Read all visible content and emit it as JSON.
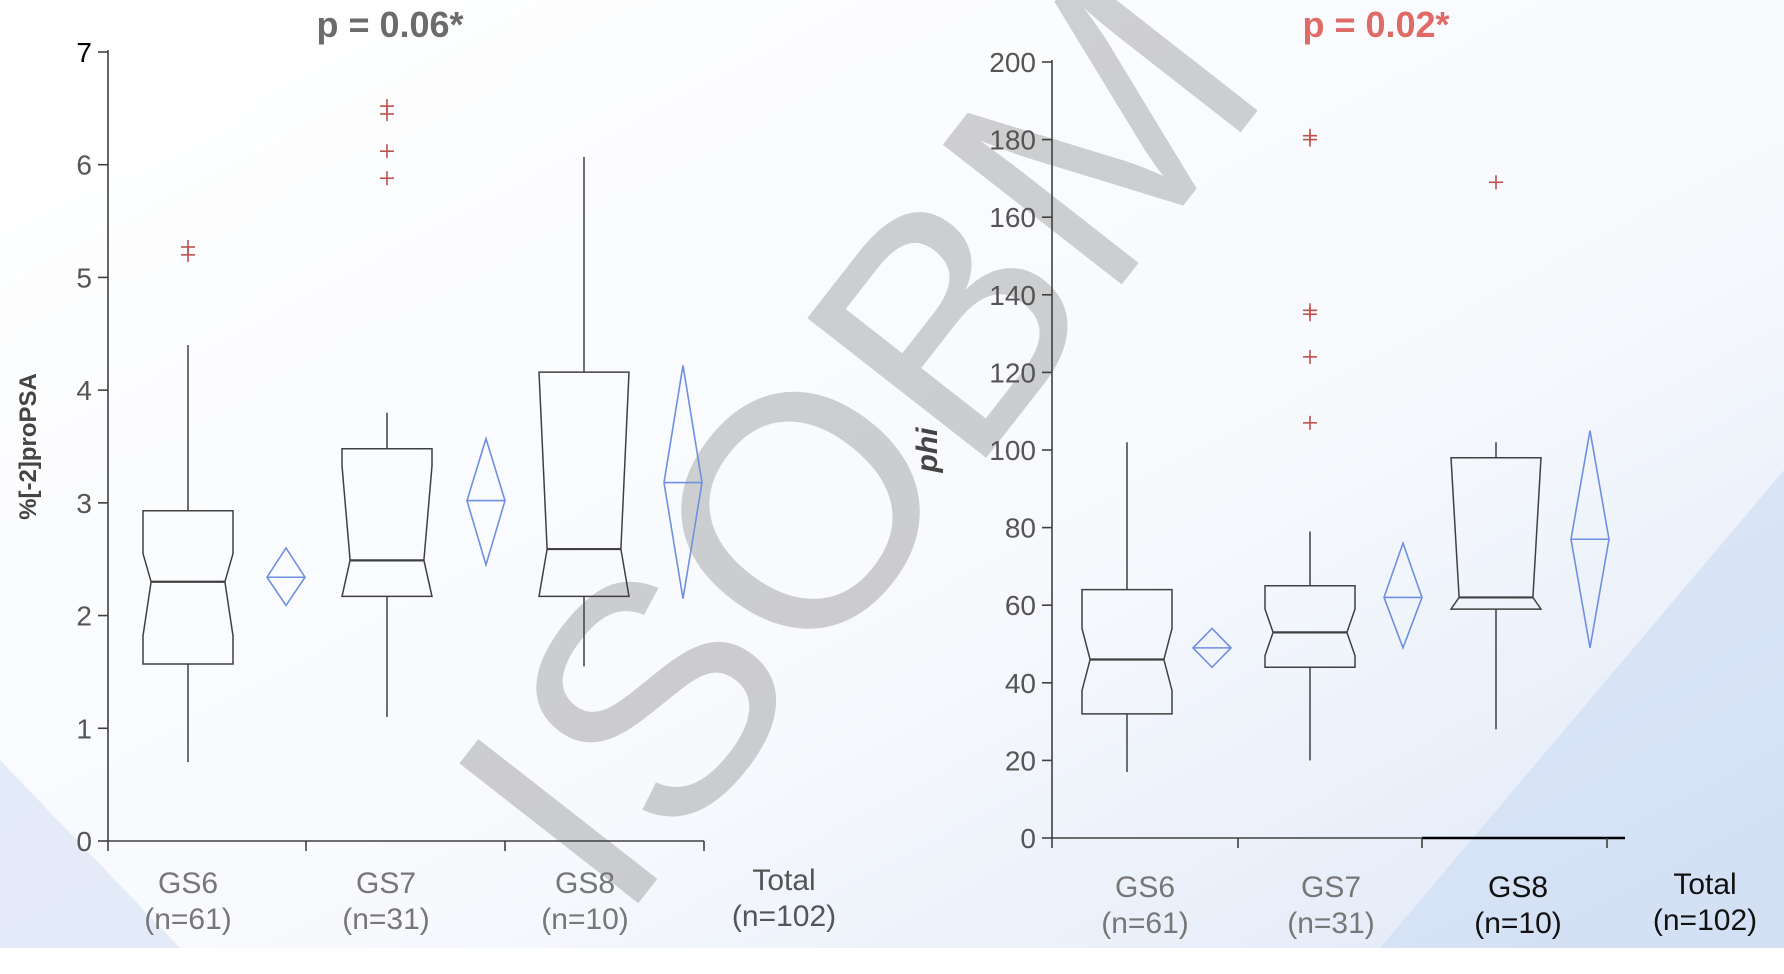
{
  "watermark": "ISOBM",
  "colors": {
    "box": "#404040",
    "diamond": "#6f8fe0",
    "outlier": "#c0504d",
    "title_left": "#6b6b6b",
    "title_right": "#e06a66",
    "axis": "#404040",
    "label": "#555555"
  },
  "chart_data": [
    {
      "type": "boxplot",
      "title": "p = 0.06*",
      "ylabel": "%[-2]proPSA",
      "ylabel_style": "bold",
      "ylim": [
        0,
        7
      ],
      "yticks": [
        0,
        1,
        2,
        3,
        4,
        5,
        6,
        7
      ],
      "categories": [
        "GS6\n(n=61)",
        "GS7\n(n=31)",
        "GS8\n(n=10)",
        "Total\n(n=102)"
      ],
      "boxes": [
        {
          "group": "GS6",
          "min": 0.7,
          "q1": 1.57,
          "median": 2.3,
          "q3": 2.93,
          "max": 4.4,
          "notch_low": 1.82,
          "notch_high": 2.55,
          "outliers": [
            5.2,
            5.27
          ]
        },
        {
          "group": "GS7",
          "min": 1.1,
          "q1": 2.17,
          "median": 2.49,
          "q3": 3.48,
          "max": 3.8,
          "notch_low": 2.17,
          "notch_high": 3.33,
          "outliers": [
            5.88,
            6.12,
            6.45,
            6.52
          ]
        },
        {
          "group": "GS8",
          "min": 1.55,
          "q1": 2.17,
          "median": 2.59,
          "q3": 4.16,
          "max": 6.07,
          "notch_low": 2.17,
          "notch_high": 4.16,
          "outliers": []
        }
      ],
      "diamonds": [
        {
          "group": "GS6",
          "mean": 2.34,
          "low": 2.09,
          "high": 2.6
        },
        {
          "group": "GS7",
          "mean": 3.02,
          "low": 2.45,
          "high": 3.57
        },
        {
          "group": "GS8",
          "mean": 3.18,
          "low": 2.15,
          "high": 4.22
        }
      ]
    },
    {
      "type": "boxplot",
      "title": "p = 0.02*",
      "ylabel": "phi",
      "ylabel_style": "bold-italic",
      "ylim": [
        0,
        200
      ],
      "yticks": [
        0,
        20,
        40,
        60,
        80,
        100,
        120,
        140,
        160,
        180,
        200
      ],
      "categories": [
        "GS6\n(n=61)",
        "GS7\n(n=31)",
        "GS8\n(n=10)",
        "Total\n(n=102)"
      ],
      "boxes": [
        {
          "group": "GS6",
          "min": 17,
          "q1": 32,
          "median": 46,
          "q3": 64,
          "max": 102,
          "notch_low": 38,
          "notch_high": 54,
          "outliers": []
        },
        {
          "group": "GS7",
          "min": 20,
          "q1": 44,
          "median": 53,
          "q3": 65,
          "max": 79,
          "notch_low": 47,
          "notch_high": 59,
          "outliers": [
            107,
            124,
            135,
            136,
            180,
            181
          ]
        },
        {
          "group": "GS8",
          "min": 28,
          "q1": 59,
          "median": 62,
          "q3": 98,
          "max": 102,
          "notch_low": 59,
          "notch_high": 98,
          "outliers": [
            169
          ]
        }
      ],
      "diamonds": [
        {
          "group": "GS6",
          "mean": 49,
          "low": 44,
          "high": 54
        },
        {
          "group": "GS7",
          "mean": 62,
          "low": 49,
          "high": 76
        },
        {
          "group": "GS8",
          "mean": 77,
          "low": 49,
          "high": 105
        }
      ]
    }
  ]
}
